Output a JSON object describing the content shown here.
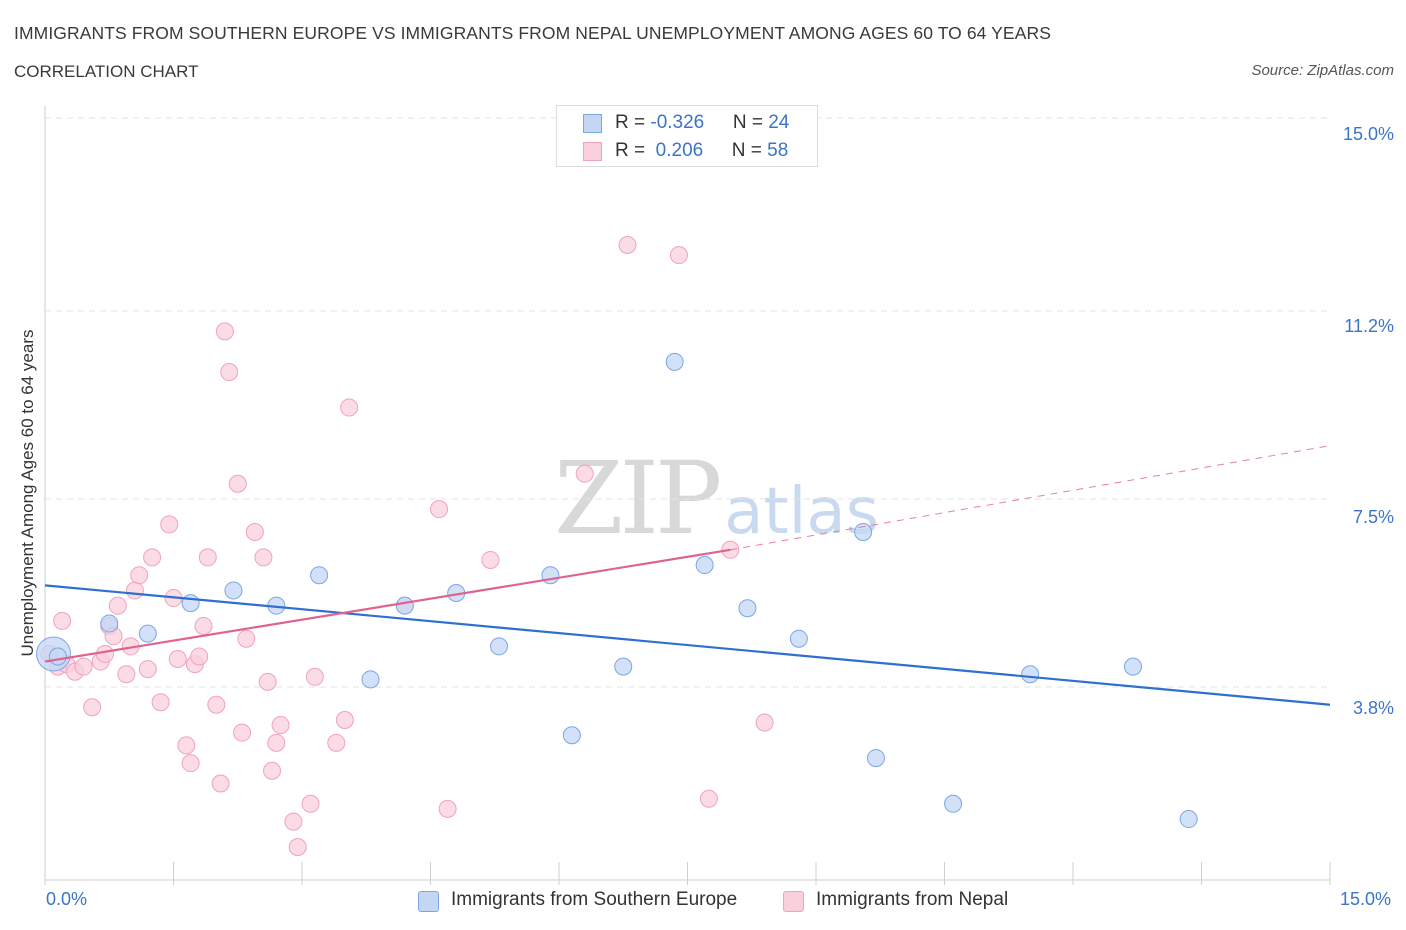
{
  "header": {
    "title": "IMMIGRANTS FROM SOUTHERN EUROPE VS IMMIGRANTS FROM NEPAL UNEMPLOYMENT AMONG AGES 60 TO 64 YEARS",
    "subtitle": "CORRELATION CHART",
    "source": "Source: ZipAtlas.com"
  },
  "legend": {
    "rows": [
      {
        "r_label": "R = ",
        "r_value": "-0.326",
        "n_label": "N = ",
        "n_value": "24"
      },
      {
        "r_label": "R = ",
        "r_value": " 0.206",
        "n_label": "N = ",
        "n_value": "58"
      }
    ]
  },
  "watermark": {
    "zip": "ZIP",
    "atlas": "atlas"
  },
  "chart_data": {
    "type": "scatter",
    "title": "IMMIGRANTS FROM SOUTHERN EUROPE VS IMMIGRANTS FROM NEPAL UNEMPLOYMENT AMONG AGES 60 TO 64 YEARS",
    "xlabel": "",
    "ylabel": "Unemployment Among Ages 60 to 64 years",
    "xlim": [
      0,
      15
    ],
    "ylim": [
      0,
      15
    ],
    "x_tick_labels": [
      "0.0%",
      "15.0%"
    ],
    "y_ticks": [
      3.8,
      7.5,
      11.2,
      15.0
    ],
    "y_tick_labels": [
      "3.8%",
      "7.5%",
      "11.2%",
      "15.0%"
    ],
    "grid": true,
    "series": [
      {
        "name": "Immigrants from Southern Europe",
        "color": "#7aa6e6",
        "fill": "#c3d7f5",
        "line_color": "#2f6fce",
        "r": -0.326,
        "n": 24,
        "trend": {
          "x": [
            0,
            15
          ],
          "y": [
            5.8,
            3.45
          ]
        },
        "points": [
          [
            0.15,
            4.4
          ],
          [
            0.75,
            5.05
          ],
          [
            1.2,
            4.85
          ],
          [
            1.7,
            5.45
          ],
          [
            2.2,
            5.7
          ],
          [
            2.7,
            5.4
          ],
          [
            3.2,
            6.0
          ],
          [
            3.8,
            3.95
          ],
          [
            4.2,
            5.4
          ],
          [
            4.8,
            5.65
          ],
          [
            5.3,
            4.6
          ],
          [
            5.9,
            6.0
          ],
          [
            6.15,
            2.85
          ],
          [
            6.75,
            4.2
          ],
          [
            7.35,
            10.2
          ],
          [
            7.7,
            6.2
          ],
          [
            8.2,
            5.35
          ],
          [
            8.8,
            4.75
          ],
          [
            9.55,
            6.85
          ],
          [
            9.7,
            2.4
          ],
          [
            10.6,
            1.5
          ],
          [
            11.5,
            4.05
          ],
          [
            12.7,
            4.2
          ],
          [
            13.35,
            1.2
          ]
        ],
        "point_sizes": [
          1,
          1,
          1,
          1,
          1,
          1,
          1,
          1,
          1,
          1,
          1,
          1,
          1,
          1,
          1,
          1,
          1,
          1,
          1,
          1,
          1,
          1,
          1,
          1
        ],
        "large_point": {
          "x": 0.1,
          "y": 4.45
        }
      },
      {
        "name": "Immigrants from Nepal",
        "color": "#f0a3bb",
        "fill": "#f9cfdc",
        "line_color": "#e0628f",
        "r": 0.206,
        "n": 58,
        "trend": {
          "x": [
            0,
            8.0
          ],
          "y": [
            4.3,
            6.5
          ]
        },
        "trend_dashed": {
          "x": [
            8.0,
            15
          ],
          "y": [
            6.5,
            8.55
          ]
        },
        "points": [
          [
            0.05,
            4.45
          ],
          [
            0.15,
            4.2
          ],
          [
            0.2,
            5.1
          ],
          [
            0.25,
            4.25
          ],
          [
            0.35,
            4.1
          ],
          [
            0.45,
            4.2
          ],
          [
            0.55,
            3.4
          ],
          [
            0.65,
            4.3
          ],
          [
            0.7,
            4.45
          ],
          [
            0.75,
            5.0
          ],
          [
            0.8,
            4.8
          ],
          [
            0.85,
            5.4
          ],
          [
            0.95,
            4.05
          ],
          [
            1.0,
            4.6
          ],
          [
            1.05,
            5.7
          ],
          [
            1.1,
            6.0
          ],
          [
            1.2,
            4.15
          ],
          [
            1.25,
            6.35
          ],
          [
            1.35,
            3.5
          ],
          [
            1.45,
            7.0
          ],
          [
            1.5,
            5.55
          ],
          [
            1.55,
            4.35
          ],
          [
            1.65,
            2.65
          ],
          [
            1.7,
            2.3
          ],
          [
            1.75,
            4.25
          ],
          [
            1.8,
            4.4
          ],
          [
            1.85,
            5.0
          ],
          [
            1.9,
            6.35
          ],
          [
            2.0,
            3.45
          ],
          [
            2.05,
            1.9
          ],
          [
            2.1,
            10.8
          ],
          [
            2.15,
            10.0
          ],
          [
            2.25,
            7.8
          ],
          [
            2.3,
            2.9
          ],
          [
            2.35,
            4.75
          ],
          [
            2.45,
            6.85
          ],
          [
            2.55,
            6.35
          ],
          [
            2.6,
            3.9
          ],
          [
            2.65,
            2.15
          ],
          [
            2.7,
            2.7
          ],
          [
            2.75,
            3.05
          ],
          [
            2.9,
            1.15
          ],
          [
            2.95,
            0.65
          ],
          [
            3.1,
            1.5
          ],
          [
            3.15,
            4.0
          ],
          [
            3.4,
            2.7
          ],
          [
            3.5,
            3.15
          ],
          [
            3.55,
            9.3
          ],
          [
            4.2,
            5.4
          ],
          [
            4.6,
            7.3
          ],
          [
            4.7,
            1.4
          ],
          [
            5.2,
            6.3
          ],
          [
            6.3,
            8.0
          ],
          [
            6.8,
            12.5
          ],
          [
            7.4,
            12.3
          ],
          [
            7.75,
            1.6
          ],
          [
            8.4,
            3.1
          ],
          [
            8.0,
            6.5
          ]
        ]
      }
    ]
  },
  "bottom_legend": [
    {
      "label": "Immigrants from Southern Europe"
    },
    {
      "label": "Immigrants from Nepal"
    }
  ],
  "colors": {
    "blue_fill": "#c3d7f5",
    "blue_stroke": "#7aa6e6",
    "pink_fill": "#f9cfdc",
    "pink_stroke": "#f0a3bb",
    "blue_line": "#2f6fce",
    "pink_line": "#e0628f",
    "axis_text": "#3b74c9"
  }
}
